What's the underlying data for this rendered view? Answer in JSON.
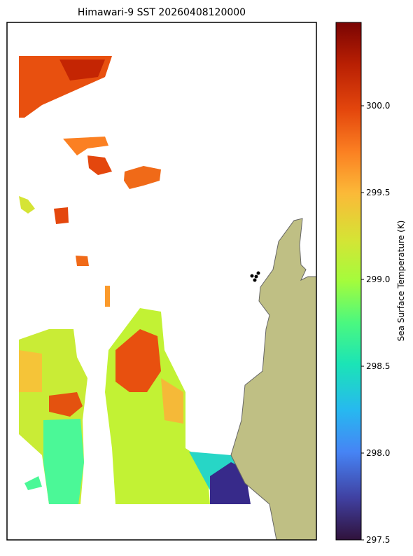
{
  "chart_data": {
    "type": "map",
    "title": "Himawari-9 SST 20260408120000",
    "colorbar": {
      "label": "Sea Surface Temperature (K)",
      "clim": [
        297.5,
        300.48
      ],
      "ticks": [
        297.5,
        {
          "value": 298,
          "label": "298.0"
        },
        298.5,
        {
          "value": 299,
          "label": "299.0"
        },
        299.5,
        {
          "value": 300,
          "label": "300.0"
        }
      ]
    }
  }
}
